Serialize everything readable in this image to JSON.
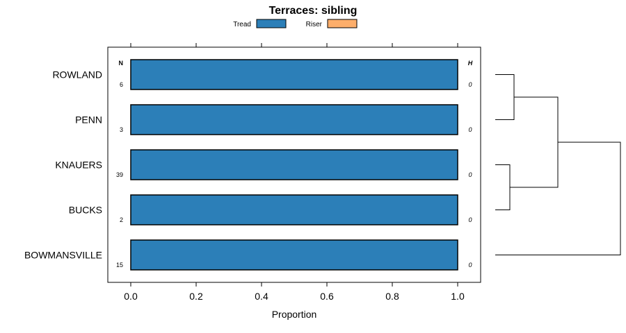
{
  "chart_data": {
    "type": "bar",
    "orientation": "horizontal",
    "stacked": true,
    "title": "Terraces: sibling",
    "xlabel": "Proportion",
    "ylabel": "",
    "xlim": [
      -0.07,
      1.07
    ],
    "x_ticks": [
      "0.0",
      "0.2",
      "0.4",
      "0.6",
      "0.8",
      "1.0"
    ],
    "x_tick_values": [
      0,
      0.2,
      0.4,
      0.6,
      0.8,
      1.0
    ],
    "categories": [
      "ROWLAND",
      "PENN",
      "KNAUERS",
      "BUCKS",
      "BOWMANSVILLE"
    ],
    "series": [
      {
        "name": "Tread",
        "color": "#2c7fb8",
        "values": [
          1,
          1,
          1,
          1,
          1
        ]
      },
      {
        "name": "Riser",
        "color": "#fdae6b",
        "values": [
          0,
          0,
          0,
          0,
          0
        ]
      }
    ],
    "legend_position": "top",
    "n_label": "N",
    "h_label": "H",
    "n_values": [
      "6",
      "3",
      "39",
      "2",
      "15"
    ],
    "h_values": [
      "0",
      "0",
      "0",
      "0",
      "0"
    ],
    "dendrogram": {
      "merges": [
        {
          "left": "ROWLAND",
          "right": "PENN",
          "height": 0.09
        },
        {
          "left": "KNAUERS",
          "right": "BUCKS",
          "height": 0.07
        },
        {
          "left": "ROWLAND+PENN",
          "right": "KNAUERS+BUCKS",
          "height": 0.3
        },
        {
          "left": "ROWLAND+PENN+KNAUERS+BUCKS",
          "right": "BOWMANSVILLE",
          "height": 0.6
        }
      ]
    }
  }
}
